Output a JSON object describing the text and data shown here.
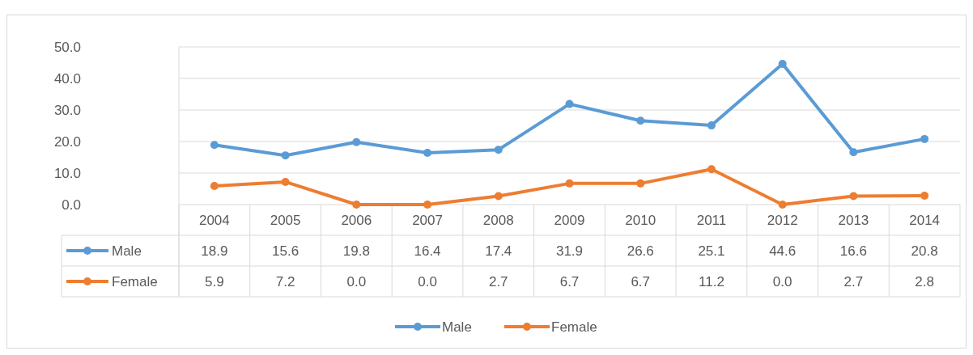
{
  "chart_data": {
    "type": "line",
    "categories": [
      "2004",
      "2005",
      "2006",
      "2007",
      "2008",
      "2009",
      "2010",
      "2011",
      "2012",
      "2013",
      "2014"
    ],
    "series": [
      {
        "name": "Male",
        "color": "#5b9bd5",
        "values": [
          18.9,
          15.6,
          19.8,
          16.4,
          17.4,
          31.9,
          26.6,
          25.1,
          44.6,
          16.6,
          20.8
        ],
        "value_labels": [
          "18.9",
          "15.6",
          "19.8",
          "16.4",
          "17.4",
          "31.9",
          "26.6",
          "25.1",
          "44.6",
          "16.6",
          "20.8"
        ]
      },
      {
        "name": "Female",
        "color": "#ed7d31",
        "values": [
          5.9,
          7.2,
          0.0,
          0.0,
          2.7,
          6.7,
          6.7,
          11.2,
          0.0,
          2.7,
          2.8
        ],
        "value_labels": [
          "5.9",
          "7.2",
          "0.0",
          "0.0",
          "2.7",
          "6.7",
          "6.7",
          "11.2",
          "0.0",
          "2.7",
          "2.8"
        ]
      }
    ],
    "ylim": [
      0,
      50
    ],
    "yticks": [
      {
        "value": 0,
        "label": "0.0"
      },
      {
        "value": 10,
        "label": "10.0"
      },
      {
        "value": 20,
        "label": "20.0"
      },
      {
        "value": 30,
        "label": "30.0"
      },
      {
        "value": 40,
        "label": "40.0"
      },
      {
        "value": 50,
        "label": "50.0"
      }
    ],
    "grid": "y",
    "legend": "bottom",
    "marker": "circle",
    "line_style": "solid"
  }
}
